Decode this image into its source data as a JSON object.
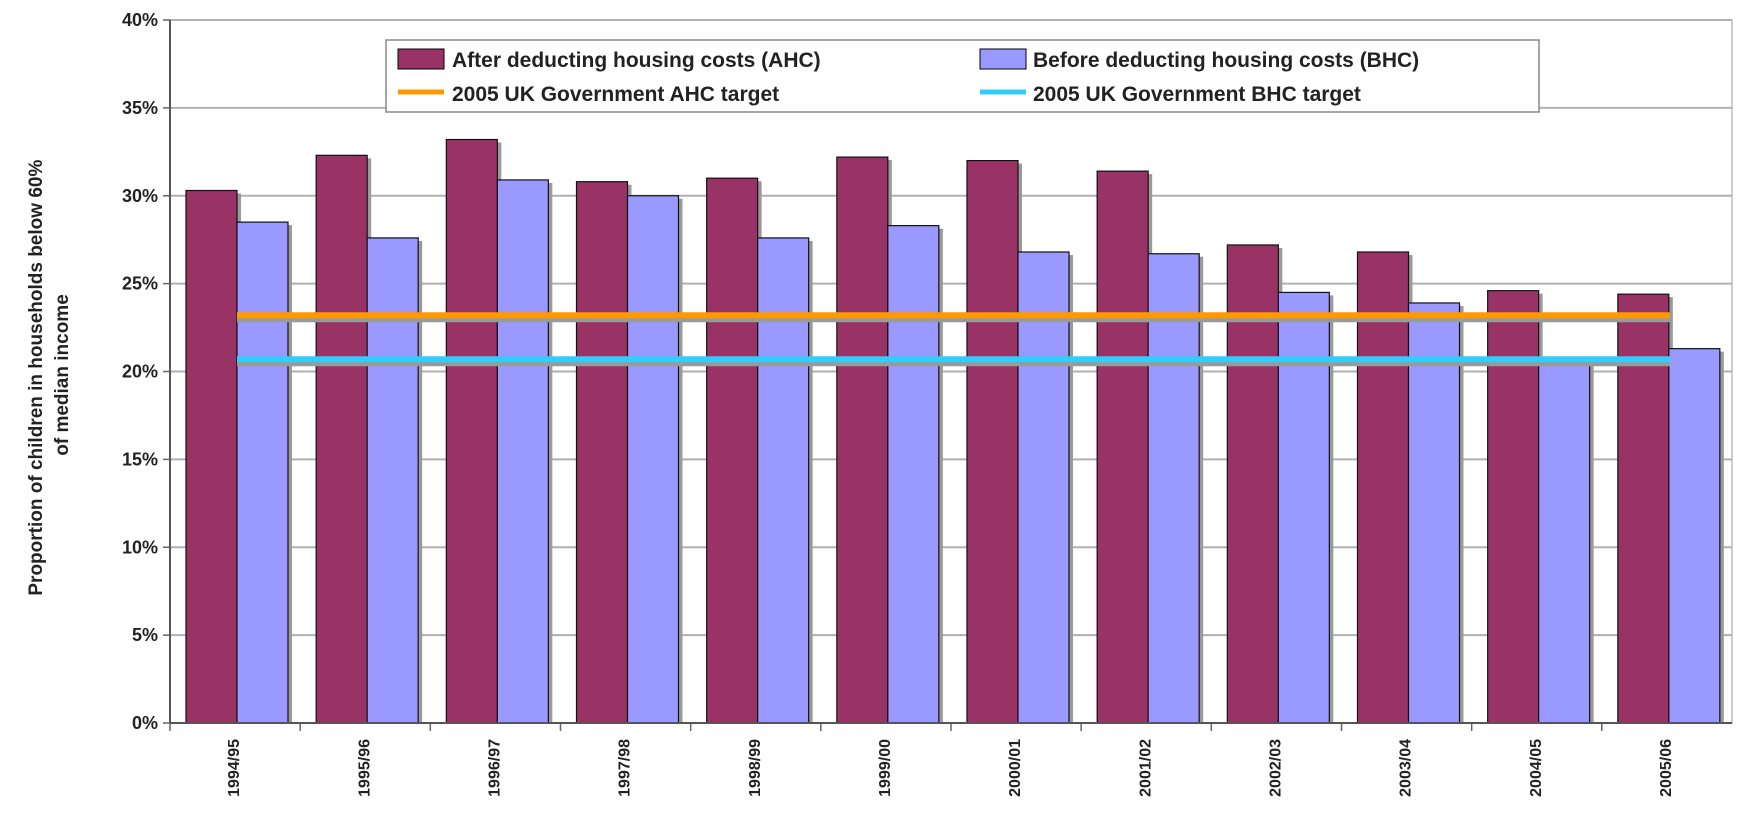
{
  "chart_data": {
    "type": "bar",
    "title": "",
    "ylabel_lines": [
      "Proportion of children in households below 60%",
      "of median income"
    ],
    "xlabel": "",
    "ylim": [
      0,
      40
    ],
    "yticks": [
      "0%",
      "5%",
      "10%",
      "15%",
      "20%",
      "25%",
      "30%",
      "35%",
      "40%"
    ],
    "grid": true,
    "legend_position": "top-center",
    "categories": [
      "1994/95",
      "1995/96",
      "1996/97",
      "1997/98",
      "1998/99",
      "1999/00",
      "2000/01",
      "2001/02",
      "2002/03",
      "2003/04",
      "2004/05",
      "2005/06"
    ],
    "series": [
      {
        "name": "After deducting housing costs (AHC)",
        "color": "#993366",
        "values": [
          30.3,
          32.3,
          33.2,
          30.8,
          31.0,
          32.2,
          32.0,
          31.4,
          27.2,
          26.8,
          24.6,
          24.4
        ]
      },
      {
        "name": "Before deducting housing costs (BHC)",
        "color": "#9999ff",
        "values": [
          28.5,
          27.6,
          30.9,
          30.0,
          27.6,
          28.3,
          26.8,
          26.7,
          24.5,
          23.9,
          20.5,
          21.3
        ]
      }
    ],
    "reference_lines": [
      {
        "name": "2005 UK Government AHC target",
        "value": 23.2,
        "color": "#ff9900"
      },
      {
        "name": "2005 UK Government BHC target",
        "value": 20.7,
        "color": "#33ccff"
      }
    ]
  }
}
